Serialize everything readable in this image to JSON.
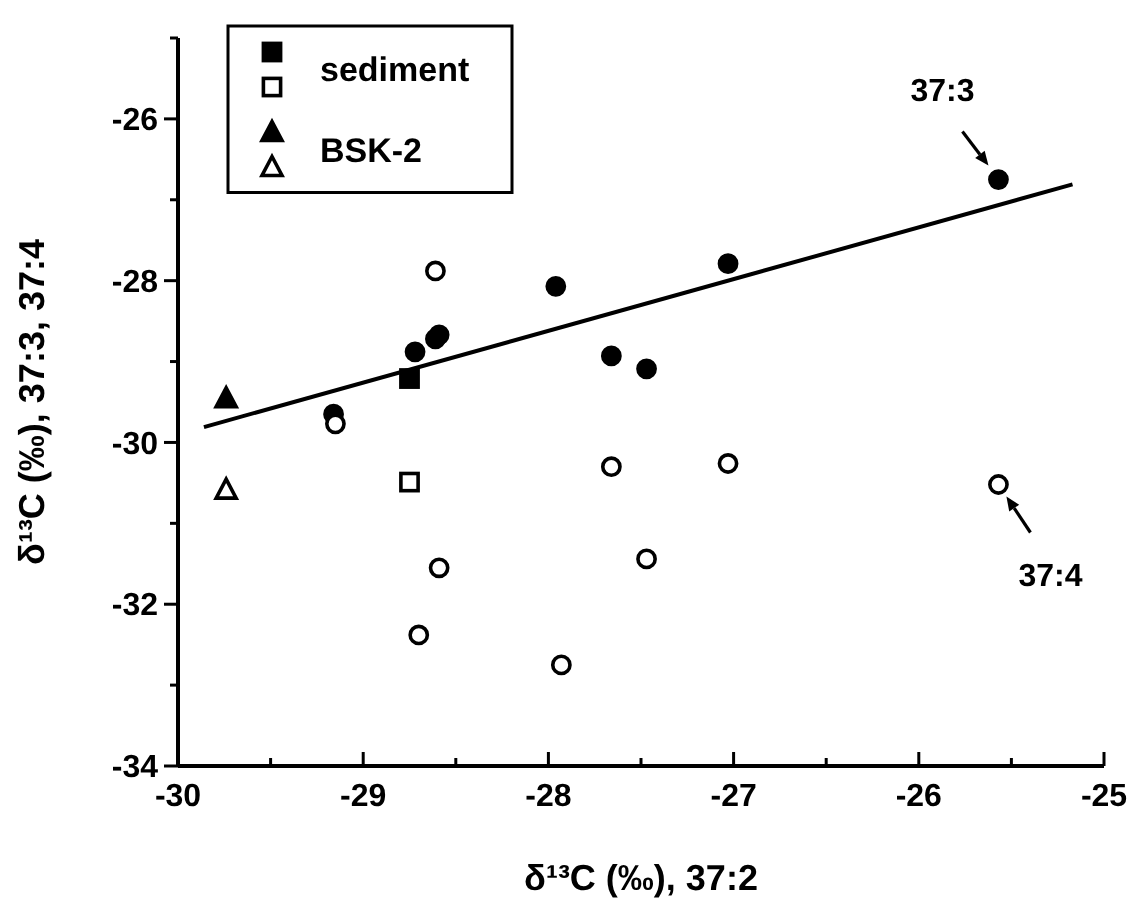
{
  "chart_data": {
    "type": "scatter",
    "xlabel": "δ¹³C (‰), 37:2",
    "ylabel": "δ¹³C (‰), 37:3, 37:4",
    "xlim": [
      -30,
      -25
    ],
    "ylim": [
      -34,
      -25
    ],
    "xticks": [
      -30,
      {
        "value": -29.5,
        "label": null
      },
      -29,
      {
        "value": -28.5,
        "label": null
      },
      -28,
      {
        "value": -27.5,
        "label": null
      },
      -27,
      {
        "value": -26.5,
        "label": null
      },
      -26,
      {
        "value": -25.5,
        "label": null
      },
      -25
    ],
    "yticks": [
      -34,
      {
        "value": -33,
        "label": null
      },
      -32,
      {
        "value": -31,
        "label": null
      },
      -30,
      {
        "value": -29,
        "label": null
      },
      -28,
      {
        "value": -27,
        "label": null
      },
      -26,
      {
        "value": -25,
        "label": null
      }
    ],
    "grid": false,
    "legend": "top left",
    "series": [
      {
        "color": "#000000",
        "marker": "circle",
        "x": [
          -29.16,
          -28.72,
          -28.61,
          -28.59,
          -27.96,
          -27.66,
          -27.47,
          -27.03,
          -25.57
        ],
        "values": [
          -29.65,
          -28.88,
          -28.72,
          -28.67,
          -28.07,
          -28.93,
          -29.09,
          -27.79,
          -26.75
        ]
      },
      {
        "color": "#ffffff",
        "marker": "circle",
        "x": [
          -29.15,
          -28.61,
          -27.66,
          -27.03,
          -27.47,
          -25.57,
          -28.59,
          -28.7,
          -27.93
        ],
        "values": [
          -29.77,
          -27.88,
          -30.3,
          -30.26,
          -31.44,
          -30.52,
          -31.55,
          -32.38,
          -32.75
        ]
      },
      {
        "name": "sediment",
        "color": "#000000",
        "marker": "square",
        "x": [
          -28.75
        ],
        "values": [
          -29.21
        ]
      },
      {
        "color": "#ffffff",
        "marker": "square",
        "x": [
          -28.75
        ],
        "values": [
          -30.49
        ]
      },
      {
        "name": "BSK-2",
        "color": "#000000",
        "marker": "triangle",
        "x": [
          -29.74
        ],
        "values": [
          -29.46
        ]
      },
      {
        "color": "#ffffff",
        "marker": "triangle",
        "x": [
          -29.74
        ],
        "values": [
          -30.59
        ]
      },
      {
        "type": "line",
        "color": "#000000",
        "marker": "none",
        "line_style": "solid",
        "x": [
          -29.86,
          -25.17
        ],
        "values": [
          -29.81,
          -26.81
        ]
      }
    ],
    "annotations": [
      {
        "text": "37:3",
        "x": -25.57,
        "y": -26.75
      },
      {
        "text": "37:4",
        "x": -25.57,
        "y": -30.52
      }
    ]
  }
}
